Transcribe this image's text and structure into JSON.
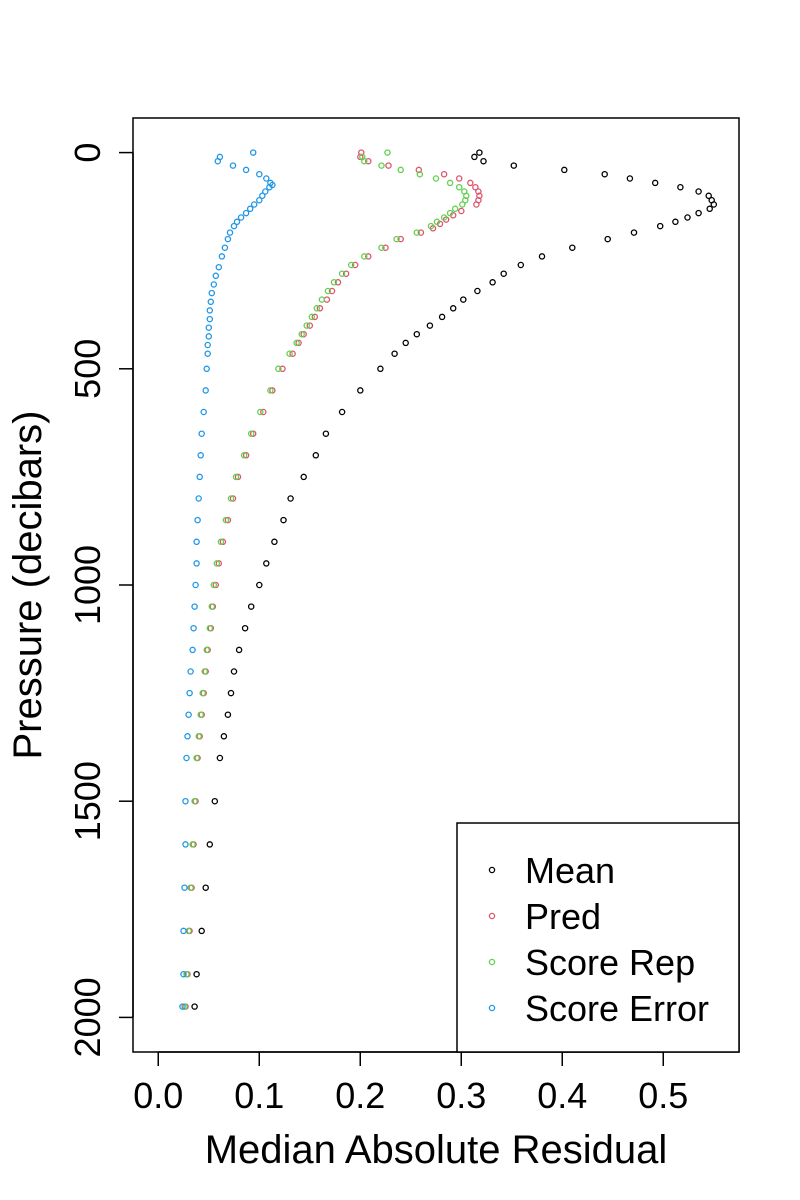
{
  "chart_data": {
    "type": "scatter",
    "title": "",
    "xlabel": "Median Absolute Residual",
    "ylabel": "Pressure (decibars)",
    "xlim": [
      -0.025,
      0.575
    ],
    "ylim": [
      2080,
      -80
    ],
    "y_reversed": true,
    "xticks": [
      "0.0",
      "0.1",
      "0.2",
      "0.3",
      "0.4",
      "0.5"
    ],
    "yticks": [
      "0",
      "500",
      "1000",
      "1500",
      "2000"
    ],
    "legend_position": "bottom-right",
    "grid": false,
    "marker": "open-circle",
    "series": [
      {
        "name": "Mean",
        "color": "#000000",
        "points": [
          [
            0.318,
            0
          ],
          [
            0.313,
            10
          ],
          [
            0.322,
            20
          ],
          [
            0.352,
            30
          ],
          [
            0.402,
            40
          ],
          [
            0.442,
            50
          ],
          [
            0.467,
            60
          ],
          [
            0.492,
            70
          ],
          [
            0.517,
            80
          ],
          [
            0.535,
            90
          ],
          [
            0.545,
            100
          ],
          [
            0.548,
            110
          ],
          [
            0.55,
            120
          ],
          [
            0.546,
            130
          ],
          [
            0.535,
            140
          ],
          [
            0.524,
            150
          ],
          [
            0.512,
            160
          ],
          [
            0.497,
            170
          ],
          [
            0.471,
            185
          ],
          [
            0.445,
            200
          ],
          [
            0.41,
            220
          ],
          [
            0.38,
            240
          ],
          [
            0.359,
            260
          ],
          [
            0.342,
            280
          ],
          [
            0.331,
            300
          ],
          [
            0.316,
            320
          ],
          [
            0.302,
            340
          ],
          [
            0.292,
            360
          ],
          [
            0.281,
            380
          ],
          [
            0.269,
            400
          ],
          [
            0.256,
            420
          ],
          [
            0.245,
            440
          ],
          [
            0.234,
            465
          ],
          [
            0.22,
            500
          ],
          [
            0.2,
            550
          ],
          [
            0.182,
            600
          ],
          [
            0.166,
            650
          ],
          [
            0.156,
            700
          ],
          [
            0.144,
            750
          ],
          [
            0.131,
            800
          ],
          [
            0.124,
            850
          ],
          [
            0.115,
            900
          ],
          [
            0.107,
            950
          ],
          [
            0.1,
            1000
          ],
          [
            0.092,
            1050
          ],
          [
            0.086,
            1100
          ],
          [
            0.08,
            1150
          ],
          [
            0.075,
            1200
          ],
          [
            0.072,
            1250
          ],
          [
            0.069,
            1300
          ],
          [
            0.065,
            1350
          ],
          [
            0.061,
            1400
          ],
          [
            0.056,
            1500
          ],
          [
            0.051,
            1600
          ],
          [
            0.047,
            1700
          ],
          [
            0.043,
            1800
          ],
          [
            0.038,
            1900
          ],
          [
            0.036,
            1975
          ]
        ]
      },
      {
        "name": "Pred",
        "color": "#DF536B",
        "points": [
          [
            0.201,
            0
          ],
          [
            0.2,
            10
          ],
          [
            0.208,
            20
          ],
          [
            0.228,
            30
          ],
          [
            0.258,
            40
          ],
          [
            0.283,
            50
          ],
          [
            0.298,
            60
          ],
          [
            0.309,
            70
          ],
          [
            0.314,
            80
          ],
          [
            0.317,
            90
          ],
          [
            0.318,
            100
          ],
          [
            0.317,
            110
          ],
          [
            0.315,
            120
          ],
          [
            0.3,
            135
          ],
          [
            0.292,
            145
          ],
          [
            0.285,
            155
          ],
          [
            0.279,
            165
          ],
          [
            0.272,
            175
          ],
          [
            0.26,
            185
          ],
          [
            0.24,
            200
          ],
          [
            0.225,
            220
          ],
          [
            0.208,
            240
          ],
          [
            0.195,
            260
          ],
          [
            0.186,
            280
          ],
          [
            0.178,
            300
          ],
          [
            0.172,
            320
          ],
          [
            0.167,
            340
          ],
          [
            0.16,
            360
          ],
          [
            0.155,
            380
          ],
          [
            0.15,
            400
          ],
          [
            0.144,
            420
          ],
          [
            0.139,
            440
          ],
          [
            0.133,
            465
          ],
          [
            0.123,
            500
          ],
          [
            0.113,
            550
          ],
          [
            0.104,
            600
          ],
          [
            0.094,
            650
          ],
          [
            0.087,
            700
          ],
          [
            0.079,
            750
          ],
          [
            0.074,
            800
          ],
          [
            0.069,
            850
          ],
          [
            0.064,
            900
          ],
          [
            0.06,
            950
          ],
          [
            0.057,
            1000
          ],
          [
            0.054,
            1050
          ],
          [
            0.052,
            1100
          ],
          [
            0.049,
            1150
          ],
          [
            0.047,
            1200
          ],
          [
            0.045,
            1250
          ],
          [
            0.043,
            1300
          ],
          [
            0.041,
            1350
          ],
          [
            0.039,
            1400
          ],
          [
            0.037,
            1500
          ],
          [
            0.035,
            1600
          ],
          [
            0.033,
            1700
          ],
          [
            0.031,
            1800
          ],
          [
            0.029,
            1900
          ],
          [
            0.027,
            1975
          ]
        ]
      },
      {
        "name": "Score Rep",
        "color": "#61D04F",
        "points": [
          [
            0.227,
            0
          ],
          [
            0.202,
            10
          ],
          [
            0.204,
            20
          ],
          [
            0.221,
            30
          ],
          [
            0.24,
            40
          ],
          [
            0.259,
            50
          ],
          [
            0.275,
            60
          ],
          [
            0.289,
            70
          ],
          [
            0.298,
            80
          ],
          [
            0.303,
            90
          ],
          [
            0.305,
            100
          ],
          [
            0.304,
            110
          ],
          [
            0.301,
            120
          ],
          [
            0.294,
            130
          ],
          [
            0.289,
            140
          ],
          [
            0.283,
            150
          ],
          [
            0.276,
            160
          ],
          [
            0.27,
            170
          ],
          [
            0.256,
            185
          ],
          [
            0.236,
            200
          ],
          [
            0.221,
            220
          ],
          [
            0.204,
            240
          ],
          [
            0.191,
            260
          ],
          [
            0.182,
            280
          ],
          [
            0.174,
            300
          ],
          [
            0.168,
            320
          ],
          [
            0.162,
            340
          ],
          [
            0.157,
            360
          ],
          [
            0.152,
            380
          ],
          [
            0.147,
            400
          ],
          [
            0.142,
            420
          ],
          [
            0.137,
            440
          ],
          [
            0.13,
            465
          ],
          [
            0.119,
            500
          ],
          [
            0.111,
            550
          ],
          [
            0.101,
            600
          ],
          [
            0.092,
            650
          ],
          [
            0.085,
            700
          ],
          [
            0.077,
            750
          ],
          [
            0.072,
            800
          ],
          [
            0.067,
            850
          ],
          [
            0.062,
            900
          ],
          [
            0.058,
            950
          ],
          [
            0.055,
            1000
          ],
          [
            0.053,
            1050
          ],
          [
            0.051,
            1100
          ],
          [
            0.048,
            1150
          ],
          [
            0.046,
            1200
          ],
          [
            0.044,
            1250
          ],
          [
            0.042,
            1300
          ],
          [
            0.04,
            1350
          ],
          [
            0.038,
            1400
          ],
          [
            0.036,
            1500
          ],
          [
            0.034,
            1600
          ],
          [
            0.032,
            1700
          ],
          [
            0.03,
            1800
          ],
          [
            0.028,
            1900
          ],
          [
            0.026,
            1975
          ]
        ]
      },
      {
        "name": "Score Error",
        "color": "#2297E6",
        "points": [
          [
            0.094,
            0
          ],
          [
            0.061,
            10
          ],
          [
            0.059,
            20
          ],
          [
            0.074,
            30
          ],
          [
            0.087,
            40
          ],
          [
            0.1,
            50
          ],
          [
            0.107,
            60
          ],
          [
            0.111,
            70
          ],
          [
            0.113,
            75
          ],
          [
            0.11,
            80
          ],
          [
            0.106,
            90
          ],
          [
            0.103,
            100
          ],
          [
            0.1,
            110
          ],
          [
            0.095,
            120
          ],
          [
            0.091,
            130
          ],
          [
            0.087,
            140
          ],
          [
            0.082,
            150
          ],
          [
            0.078,
            160
          ],
          [
            0.075,
            170
          ],
          [
            0.071,
            185
          ],
          [
            0.069,
            200
          ],
          [
            0.066,
            220
          ],
          [
            0.063,
            240
          ],
          [
            0.06,
            265
          ],
          [
            0.057,
            285
          ],
          [
            0.055,
            305
          ],
          [
            0.053,
            325
          ],
          [
            0.052,
            345
          ],
          [
            0.051,
            365
          ],
          [
            0.051,
            385
          ],
          [
            0.05,
            405
          ],
          [
            0.05,
            425
          ],
          [
            0.049,
            445
          ],
          [
            0.049,
            465
          ],
          [
            0.048,
            500
          ],
          [
            0.047,
            550
          ],
          [
            0.045,
            600
          ],
          [
            0.043,
            650
          ],
          [
            0.042,
            700
          ],
          [
            0.041,
            750
          ],
          [
            0.04,
            800
          ],
          [
            0.039,
            850
          ],
          [
            0.038,
            900
          ],
          [
            0.038,
            950
          ],
          [
            0.037,
            1000
          ],
          [
            0.036,
            1050
          ],
          [
            0.035,
            1100
          ],
          [
            0.034,
            1150
          ],
          [
            0.032,
            1200
          ],
          [
            0.031,
            1250
          ],
          [
            0.03,
            1300
          ],
          [
            0.029,
            1350
          ],
          [
            0.028,
            1400
          ],
          [
            0.027,
            1500
          ],
          [
            0.027,
            1600
          ],
          [
            0.026,
            1700
          ],
          [
            0.025,
            1800
          ],
          [
            0.025,
            1900
          ],
          [
            0.024,
            1975
          ]
        ]
      }
    ]
  }
}
